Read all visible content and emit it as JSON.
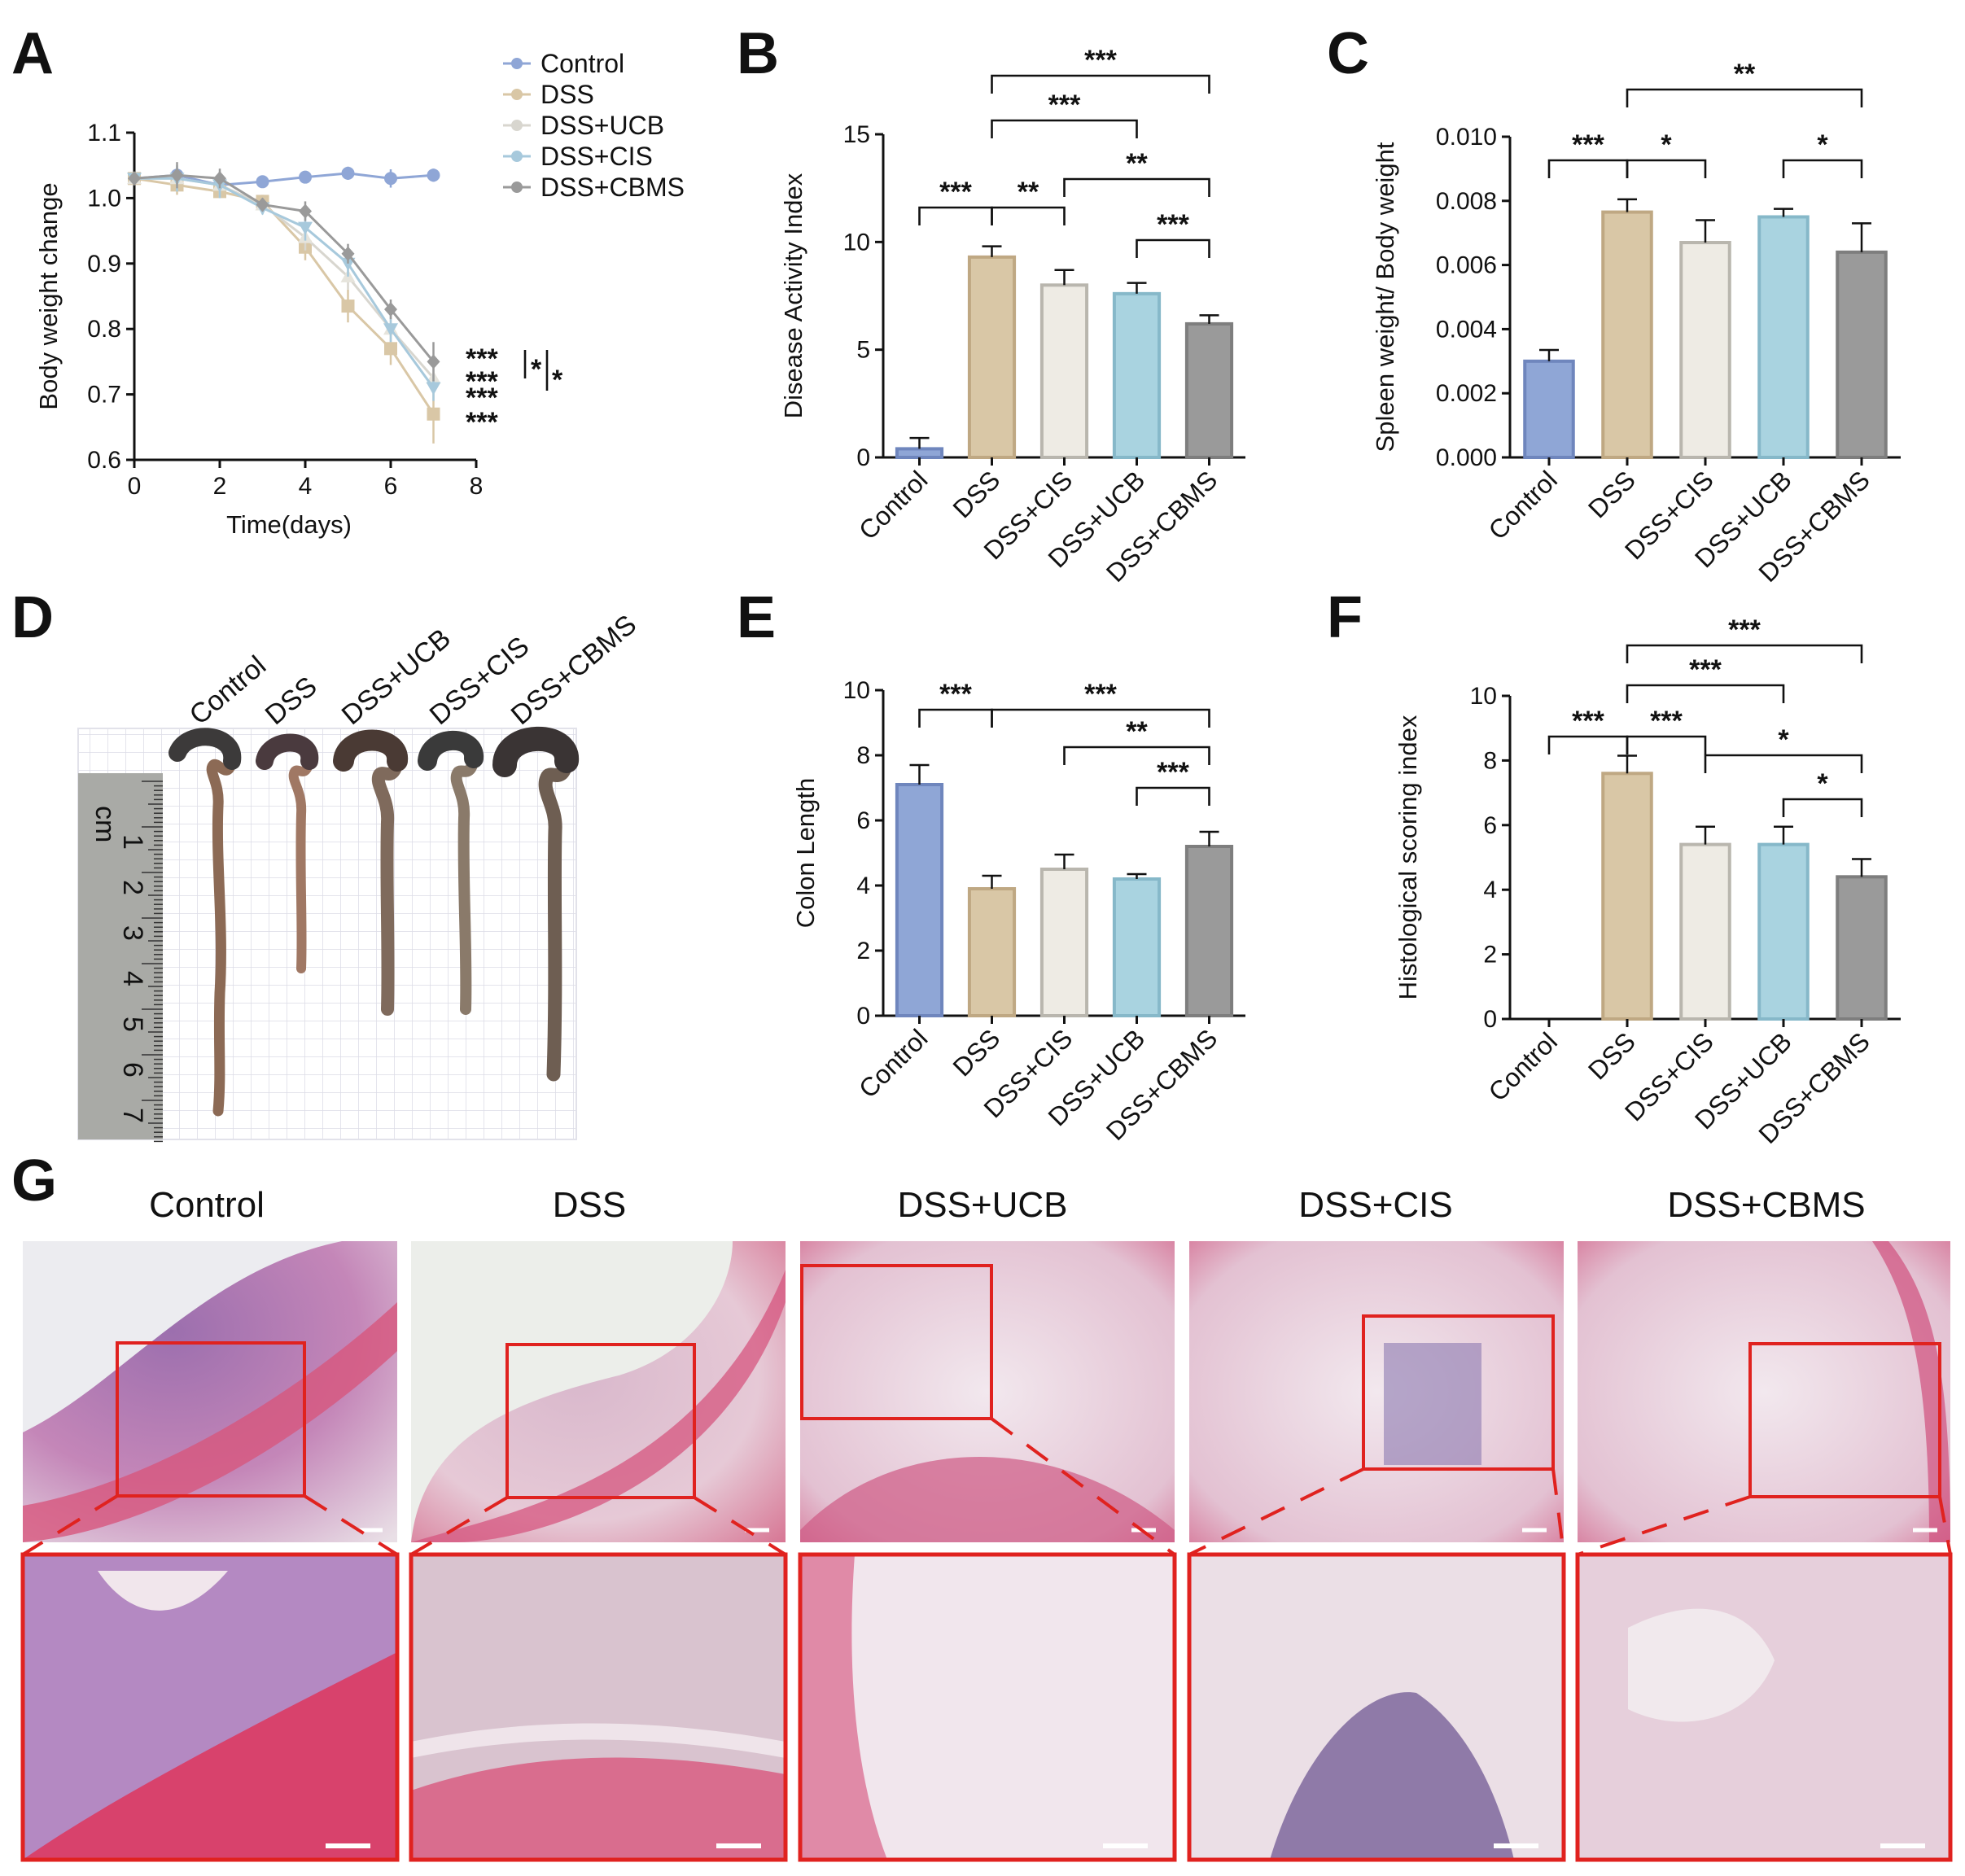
{
  "panel_labels": [
    "A",
    "B",
    "C",
    "D",
    "E",
    "F",
    "G"
  ],
  "colors": {
    "Control": "#8fa6d6",
    "DSS": "#d9c7a6",
    "DSS+CIS": "#eeebe4",
    "DSS+UCB": "#a9d3e0",
    "DSS+CBMS": "#9a9a9a",
    "sig_red": "#d81f26"
  },
  "chart_data": [
    {
      "id": "A",
      "type": "line",
      "xlabel": "Time(days)",
      "ylabel": "Body weight change",
      "xlim": [
        0,
        8
      ],
      "ylim": [
        0.6,
        1.1
      ],
      "xticks": [
        "0",
        "2",
        "4",
        "6",
        "8"
      ],
      "yticks": [
        "0.6",
        "0.7",
        "0.8",
        "0.9",
        "1.0",
        "1.1"
      ],
      "legend_position": "top-right",
      "series": [
        {
          "name": "Control",
          "x": [
            0,
            1,
            2,
            3,
            4,
            5,
            6,
            7
          ],
          "values": [
            1.03,
            1.035,
            1.02,
            1.025,
            1.032,
            1.038,
            1.03,
            1.035
          ],
          "err": [
            0.005,
            0.012,
            0.01,
            0.006,
            0.006,
            0.01,
            0.014,
            0.01
          ]
        },
        {
          "name": "DSS",
          "x": [
            0,
            1,
            2,
            3,
            4,
            5,
            6,
            7
          ],
          "values": [
            1.03,
            1.02,
            1.01,
            0.995,
            0.925,
            0.835,
            0.77,
            0.67
          ],
          "err": [
            0.005,
            0.015,
            0.01,
            0.01,
            0.02,
            0.025,
            0.025,
            0.045
          ]
        },
        {
          "name": "DSS+UCB",
          "x": [
            0,
            1,
            2,
            3,
            4,
            5,
            6,
            7
          ],
          "values": [
            1.03,
            1.03,
            1.02,
            0.99,
            0.94,
            0.88,
            0.8,
            0.725
          ],
          "err": [
            0.005,
            0.02,
            0.02,
            0.01,
            0.02,
            0.02,
            0.02,
            0.02
          ]
        },
        {
          "name": "DSS+CIS",
          "x": [
            0,
            1,
            2,
            3,
            4,
            5,
            6,
            7
          ],
          "values": [
            1.03,
            1.03,
            1.02,
            0.985,
            0.955,
            0.9,
            0.8,
            0.71
          ],
          "err": [
            0.005,
            0.02,
            0.02,
            0.01,
            0.02,
            0.02,
            0.02,
            0.02
          ]
        },
        {
          "name": "DSS+CBMS",
          "x": [
            0,
            1,
            2,
            3,
            4,
            5,
            6,
            7
          ],
          "values": [
            1.03,
            1.035,
            1.03,
            0.99,
            0.98,
            0.915,
            0.83,
            0.75
          ],
          "err": [
            0.005,
            0.02,
            0.015,
            0.01,
            0.015,
            0.015,
            0.015,
            0.03
          ]
        }
      ],
      "annotations": [
        "***",
        "***",
        "***",
        "***",
        "*",
        "*"
      ]
    },
    {
      "id": "B",
      "type": "bar",
      "ylabel": "Disease Activity Index",
      "ylim": [
        0,
        15
      ],
      "yticks": [
        "0",
        "5",
        "10",
        "15"
      ],
      "categories": [
        "Control",
        "DSS",
        "DSS+CIS",
        "DSS+UCB",
        "DSS+CBMS"
      ],
      "values": [
        0.4,
        9.3,
        8.0,
        7.6,
        6.2
      ],
      "err": [
        0.5,
        0.5,
        0.7,
        0.5,
        0.4
      ],
      "brackets": [
        {
          "from": 0,
          "to": 1,
          "label": "***"
        },
        {
          "from": 1,
          "to": 2,
          "label": "**"
        },
        {
          "from": 3,
          "to": 4,
          "label": "***"
        },
        {
          "from": 2,
          "to": 4,
          "label": "**"
        },
        {
          "from": 1,
          "to": 3,
          "label": "***"
        },
        {
          "from": 1,
          "to": 4,
          "label": "***"
        }
      ]
    },
    {
      "id": "C",
      "type": "bar",
      "ylabel": "Spleen weight/ Body weight",
      "ylim": [
        0,
        0.01
      ],
      "yticks": [
        "0.000",
        "0.002",
        "0.004",
        "0.006",
        "0.008",
        "0.010"
      ],
      "categories": [
        "Control",
        "DSS",
        "DSS+CIS",
        "DSS+UCB",
        "DSS+CBMS"
      ],
      "values": [
        0.003,
        0.00765,
        0.0067,
        0.0075,
        0.0064
      ],
      "err": [
        0.00035,
        0.0004,
        0.0007,
        0.00025,
        0.0009
      ],
      "brackets": [
        {
          "from": 0,
          "to": 1,
          "label": "***"
        },
        {
          "from": 1,
          "to": 2,
          "label": "*"
        },
        {
          "from": 3,
          "to": 4,
          "label": "*"
        },
        {
          "from": 1,
          "to": 4,
          "label": "**"
        }
      ]
    },
    {
      "id": "E",
      "type": "bar",
      "ylabel": "Colon Length",
      "ylim": [
        0,
        10
      ],
      "yticks": [
        "0",
        "2",
        "4",
        "6",
        "8",
        "10"
      ],
      "categories": [
        "Control",
        "DSS",
        "DSS+CIS",
        "DSS+UCB",
        "DSS+CBMS"
      ],
      "values": [
        7.1,
        3.9,
        4.5,
        4.2,
        5.2
      ],
      "err": [
        0.6,
        0.4,
        0.45,
        0.15,
        0.45
      ],
      "brackets": [
        {
          "from": 0,
          "to": 1,
          "label": "***"
        },
        {
          "from": 3,
          "to": 4,
          "label": "***"
        },
        {
          "from": 2,
          "to": 4,
          "label": "**"
        },
        {
          "from": 1,
          "to": 4,
          "label": "***"
        }
      ]
    },
    {
      "id": "F",
      "type": "bar",
      "ylabel": "Histological scoring index",
      "ylim": [
        0,
        10
      ],
      "yticks": [
        "0",
        "2",
        "4",
        "6",
        "8",
        "10"
      ],
      "categories": [
        "Control",
        "DSS",
        "DSS+CIS",
        "DSS+UCB",
        "DSS+CBMS"
      ],
      "values": [
        0,
        7.6,
        5.4,
        5.4,
        4.4
      ],
      "err": [
        0,
        0.55,
        0.55,
        0.55,
        0.55
      ],
      "brackets": [
        {
          "from": 0,
          "to": 1,
          "label": "***"
        },
        {
          "from": 1,
          "to": 2,
          "label": "***"
        },
        {
          "from": 3,
          "to": 4,
          "label": "*"
        },
        {
          "from": 2,
          "to": 4,
          "label": "*"
        },
        {
          "from": 1,
          "to": 3,
          "label": "***"
        },
        {
          "from": 1,
          "to": 4,
          "label": "***"
        }
      ]
    }
  ],
  "panel_d": {
    "labels": [
      "Control",
      "DSS",
      "DSS+UCB",
      "DSS+CIS",
      "DSS+CBMS"
    ],
    "ruler_unit": "cm",
    "ruler_numbers": [
      "1",
      "2",
      "3",
      "4",
      "5",
      "6",
      "7"
    ]
  },
  "panel_g": {
    "titles": [
      "Control",
      "DSS",
      "DSS+UCB",
      "DSS+CIS",
      "DSS+CBMS"
    ]
  }
}
